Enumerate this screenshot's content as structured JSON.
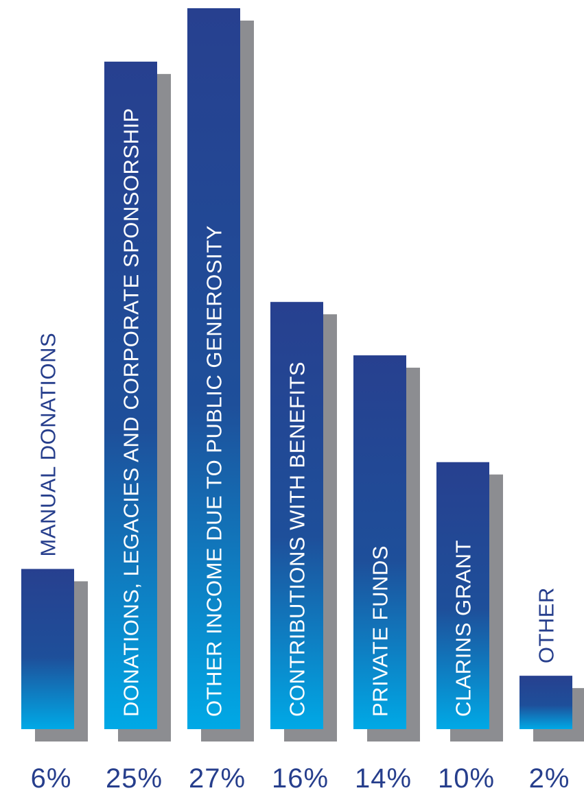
{
  "chart_data": {
    "type": "bar",
    "categories": [
      "MANUAL DONATIONS",
      "DONATIONS, LEGACIES AND CORPORATE SPONSORSHIP",
      "OTHER INCOME DUE TO PUBLIC GENEROSITY",
      "CONTRIBUTIONS WITH BENEFITS",
      "PRIVATE FUNDS",
      "CLARINS GRANT",
      "OTHER"
    ],
    "values": [
      6,
      25,
      27,
      16,
      14,
      10,
      2
    ],
    "value_labels": [
      "6%",
      "25%",
      "27%",
      "16%",
      "14%",
      "10%",
      "2%"
    ],
    "unit": "%",
    "title": "",
    "xlabel": "",
    "ylabel": "",
    "ylim": [
      0,
      27
    ],
    "grid": false,
    "legend": "none"
  },
  "colors": {
    "bar_top": "#27408f",
    "bar_mid": "#1e4f9a",
    "bar_bottom": "#00a9e6",
    "shadow": "#8c8d91",
    "label_dark": "#263e8c",
    "label_light": "#ffffff",
    "percent_text": "#263e8c"
  }
}
